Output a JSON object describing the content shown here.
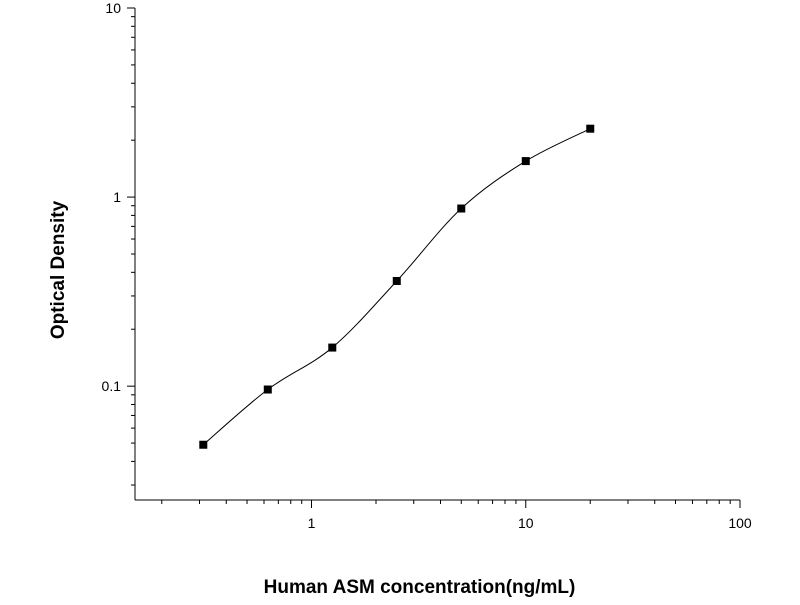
{
  "chart_data": {
    "type": "scatter",
    "xlabel": "Human ASM concentration(ng/mL)",
    "ylabel": "Optical Density",
    "xscale": "log",
    "yscale": "log",
    "xlim": [
      0.15,
      100
    ],
    "ylim": [
      0.025,
      10
    ],
    "x_ticks": [
      {
        "value": 1,
        "label": "1"
      },
      {
        "value": 10,
        "label": "10"
      },
      {
        "value": 100,
        "label": "100"
      }
    ],
    "y_ticks": [
      {
        "value": 0.1,
        "label": "0.1"
      },
      {
        "value": 1,
        "label": "1"
      },
      {
        "value": 10,
        "label": "10"
      }
    ],
    "grid": false,
    "legend": "none",
    "series": [
      {
        "x": [
          0.3125,
          0.625,
          1.25,
          2.5,
          5,
          10,
          20
        ],
        "y": [
          0.049,
          0.096,
          0.16,
          0.36,
          0.87,
          1.55,
          2.3
        ],
        "marker": "square",
        "fit_curve": true
      }
    ]
  }
}
